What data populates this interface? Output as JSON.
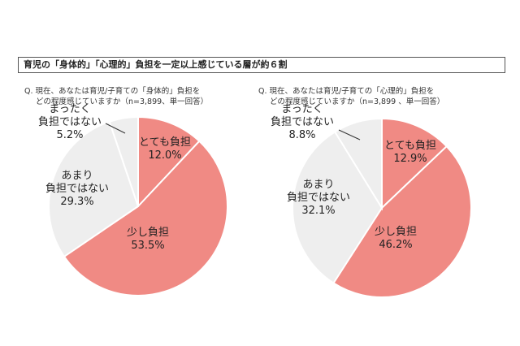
{
  "header": {
    "title": "育児の「身体的」「心理的」負担を一定以上感じている層が約６割"
  },
  "charts": {
    "left": {
      "question_line1": "Q. 現在、あなたは育児/子育ての「身体的」負担を",
      "question_line2": "どの程度感じていますか（n=3,899、単一回答）",
      "labels": [
        {
          "lines": [
            "とても負担"
          ],
          "pct": "12.0%"
        },
        {
          "lines": [
            "少し負担"
          ],
          "pct": "53.5%"
        },
        {
          "lines": [
            "あまり",
            "負担ではない"
          ],
          "pct": "29.3%"
        },
        {
          "lines": [
            "まったく",
            "負担ではない"
          ],
          "pct": "5.2%"
        }
      ]
    },
    "right": {
      "question_line1": "Q. 現在、あなたは育児/子育ての「心理的」負担を",
      "question_line2": "どの程度感じていますか（n=3,899 、単一回答）",
      "labels": [
        {
          "lines": [
            "とても負担"
          ],
          "pct": "12.9%"
        },
        {
          "lines": [
            "少し負担"
          ],
          "pct": "46.2%"
        },
        {
          "lines": [
            "あまり",
            "負担ではない"
          ],
          "pct": "32.1%"
        },
        {
          "lines": [
            "まったく",
            "負担ではない"
          ],
          "pct": "8.8%"
        }
      ]
    }
  },
  "chart_data": [
    {
      "type": "pie",
      "categories": [
        "とても負担",
        "少し負担",
        "あまり負担ではない",
        "まったく負担ではない"
      ],
      "values": [
        12.0,
        53.5,
        29.3,
        5.2
      ],
      "colors": [
        "#f08a84",
        "#f08a84",
        "#eeeeee",
        "#eeeeee"
      ]
    },
    {
      "type": "pie",
      "categories": [
        "とても負担",
        "少し負担",
        "あまり負担ではない",
        "まったく負担ではない"
      ],
      "values": [
        12.9,
        46.2,
        32.1,
        8.8
      ],
      "colors": [
        "#f08a84",
        "#f08a84",
        "#eeeeee",
        "#eeeeee"
      ]
    }
  ]
}
